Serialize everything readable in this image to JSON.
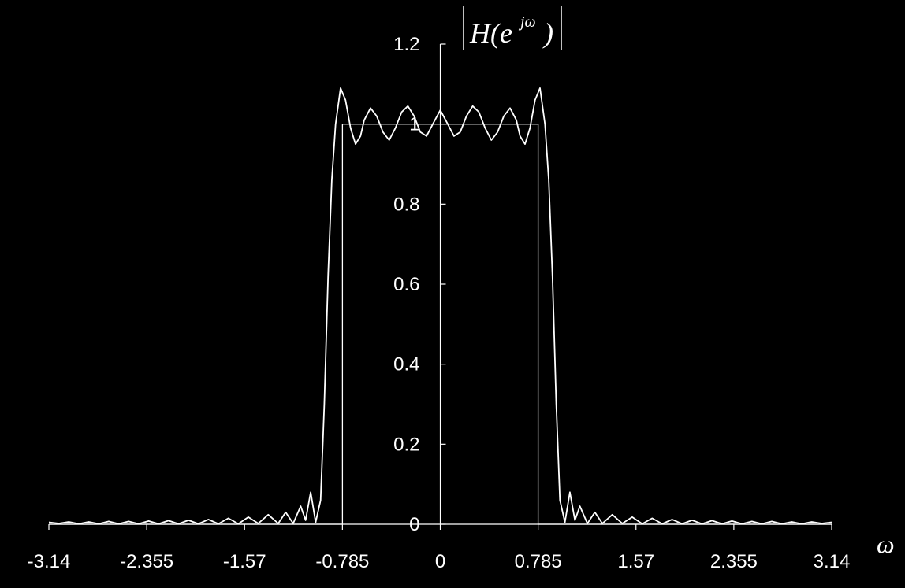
{
  "chart_data": {
    "type": "line",
    "title": "",
    "ylabel": {
      "prefix": "H(e",
      "superscript": "jω",
      "suffix": ")"
    },
    "xlabel": "ω",
    "xlim": [
      -3.14,
      3.14
    ],
    "ylim": [
      0,
      1.2
    ],
    "x_ticks": [
      -3.14,
      -2.355,
      -1.57,
      -0.785,
      0,
      0.785,
      1.57,
      2.355,
      3.14
    ],
    "x_tick_labels": [
      "-3.14",
      "-2.355",
      "-1.57",
      "-0.785",
      "0",
      "0.785",
      "1.57",
      "2.355",
      "3.14"
    ],
    "y_ticks": [
      0,
      0.2,
      0.4,
      0.6,
      0.8,
      1,
      1.2
    ],
    "y_tick_labels": [
      "0",
      "0.2",
      "0.4",
      "0.6",
      "0.8",
      "1",
      "1.2"
    ],
    "grid": false,
    "legend": "none",
    "colors": {
      "background": "#000000",
      "foreground": "#ffffff"
    },
    "series": [
      {
        "style": "ideal",
        "x": [
          -3.14,
          -0.785,
          -0.785,
          0.785,
          0.785,
          3.14
        ],
        "y": [
          0,
          0,
          1,
          1,
          0,
          0
        ]
      },
      {
        "style": "actual",
        "x": [
          -3.14,
          -3.06,
          -2.98,
          -2.9,
          -2.82,
          -2.74,
          -2.66,
          -2.58,
          -2.5,
          -2.42,
          -2.34,
          -2.26,
          -2.18,
          -2.1,
          -2.02,
          -1.94,
          -1.86,
          -1.78,
          -1.7,
          -1.62,
          -1.54,
          -1.46,
          -1.38,
          -1.3,
          -1.24,
          -1.18,
          -1.12,
          -1.08,
          -1.04,
          -1.0,
          -0.96,
          -0.93,
          -0.9,
          -0.87,
          -0.84,
          -0.8,
          -0.76,
          -0.72,
          -0.68,
          -0.64,
          -0.61,
          -0.56,
          -0.51,
          -0.46,
          -0.41,
          -0.36,
          -0.31,
          -0.26,
          -0.21,
          -0.16,
          -0.11,
          -0.06,
          0,
          0.06,
          0.11,
          0.16,
          0.21,
          0.26,
          0.31,
          0.36,
          0.41,
          0.46,
          0.51,
          0.56,
          0.61,
          0.64,
          0.68,
          0.72,
          0.76,
          0.8,
          0.84,
          0.87,
          0.9,
          0.93,
          0.96,
          1.0,
          1.04,
          1.08,
          1.12,
          1.18,
          1.24,
          1.3,
          1.38,
          1.46,
          1.54,
          1.62,
          1.7,
          1.78,
          1.86,
          1.94,
          2.02,
          2.1,
          2.18,
          2.26,
          2.34,
          2.42,
          2.5,
          2.58,
          2.66,
          2.74,
          2.82,
          2.9,
          2.98,
          3.06,
          3.14
        ],
        "y": [
          0.005,
          0.002,
          0.006,
          0.001,
          0.006,
          0.001,
          0.007,
          0.001,
          0.007,
          0.001,
          0.008,
          0.001,
          0.009,
          0.001,
          0.01,
          0.001,
          0.012,
          0.001,
          0.015,
          0.001,
          0.018,
          0.002,
          0.024,
          0.002,
          0.03,
          0.002,
          0.045,
          0.01,
          0.08,
          0.005,
          0.06,
          0.3,
          0.62,
          0.86,
          1.0,
          1.09,
          1.06,
          0.99,
          0.95,
          0.97,
          1.01,
          1.04,
          1.02,
          0.98,
          0.96,
          0.99,
          1.03,
          1.045,
          1.02,
          0.98,
          0.97,
          1.0,
          1.035,
          1.0,
          0.97,
          0.98,
          1.02,
          1.045,
          1.03,
          0.99,
          0.96,
          0.98,
          1.02,
          1.04,
          1.01,
          0.97,
          0.95,
          0.99,
          1.06,
          1.09,
          1.0,
          0.86,
          0.62,
          0.3,
          0.06,
          0.005,
          0.08,
          0.01,
          0.045,
          0.002,
          0.03,
          0.002,
          0.024,
          0.002,
          0.018,
          0.001,
          0.015,
          0.001,
          0.012,
          0.001,
          0.01,
          0.001,
          0.009,
          0.001,
          0.008,
          0.001,
          0.007,
          0.001,
          0.007,
          0.001,
          0.006,
          0.001,
          0.006,
          0.002,
          0.005
        ]
      }
    ]
  }
}
